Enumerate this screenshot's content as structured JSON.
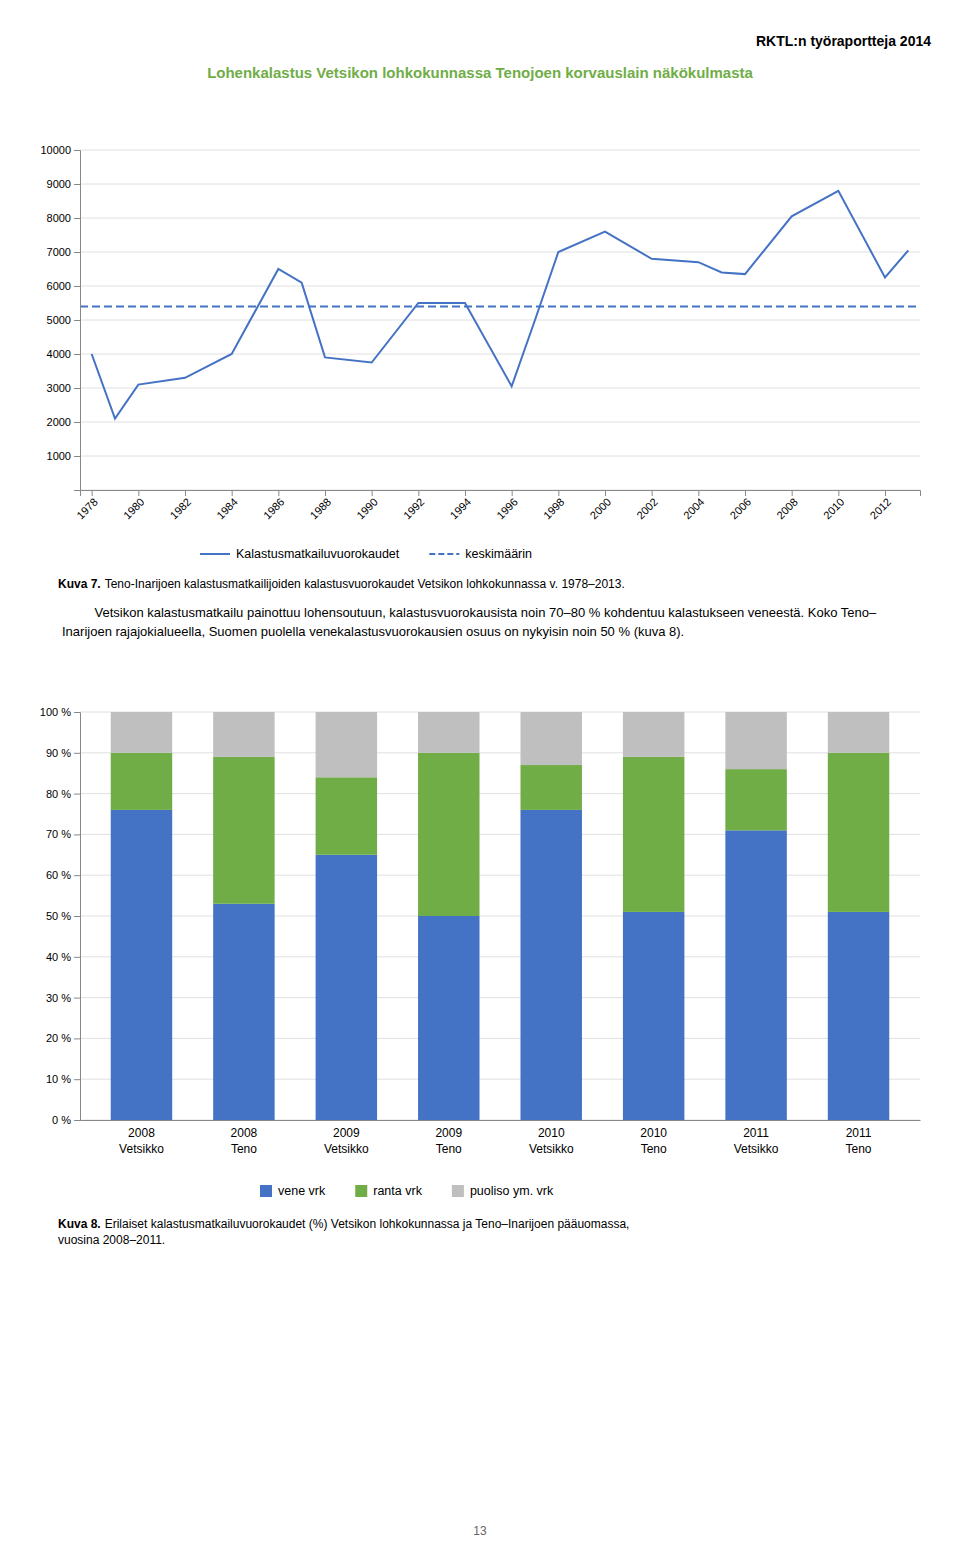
{
  "header": "RKTL:n työraportteja 2014",
  "title": "Lohenkalastus Vetsikon lohkokunnassa Tenojoen korvauslain näkökulmasta",
  "body_text": "Vetsikon kalastusmatkailu painottuu lohensoutuun, kalastusvuorokausista noin 70–80 % kohdentuu kalastukseen veneestä. Koko Teno–Inarijoen rajajokialueella, Suomen puolella venekalastusvuorokausien osuus on nykyisin noin 50 % (kuva 8).",
  "page_number": "13",
  "chart_data": [
    {
      "type": "line",
      "x": [
        1978,
        1979,
        1980,
        1982,
        1984,
        1986,
        1987,
        1988,
        1990,
        1992,
        1994,
        1996,
        1997,
        1998,
        2000,
        2002,
        2004,
        2005,
        2006,
        2008,
        2010,
        2012,
        2013
      ],
      "series": [
        {
          "name": "Kalastusmatkailuvuorokaudet",
          "color": "#4472c4",
          "values": [
            4000,
            2100,
            3100,
            3300,
            4000,
            6500,
            6100,
            3900,
            3750,
            5500,
            5500,
            3050,
            5000,
            7000,
            7600,
            6800,
            6700,
            6400,
            6350,
            8050,
            8800,
            6250,
            7050
          ]
        },
        {
          "name": "keskimäärin",
          "type": "hline",
          "color": "#4472c4",
          "line_style": "dashed",
          "value": 5400
        }
      ],
      "xlim": [
        1977.5,
        2013.5
      ],
      "xticks": [
        1978,
        1980,
        1982,
        1984,
        1986,
        1988,
        1990,
        1992,
        1994,
        1996,
        1998,
        2000,
        2002,
        2004,
        2006,
        2008,
        2010,
        2012
      ],
      "ylim": [
        0,
        10000
      ],
      "yticks": [
        {
          "value": 0,
          "label": null
        },
        1000,
        2000,
        3000,
        4000,
        5000,
        6000,
        7000,
        8000,
        9000,
        10000
      ],
      "grid": "y",
      "legend": "bottom",
      "caption": {
        "label": "Kuva 7.",
        "lines": [
          "Teno-Inarijoen kalastusmatkailijoiden kalastusvuorokaudet Vetsikon lohkokunnassa v. 1978–2013."
        ]
      }
    },
    {
      "type": "bar",
      "stacked": true,
      "categories": [
        [
          "2008",
          "Vetsikko"
        ],
        [
          "2008",
          "Teno"
        ],
        [
          "2009",
          "Vetsikko"
        ],
        [
          "2009",
          "Teno"
        ],
        [
          "2010",
          "Vetsikko"
        ],
        [
          "2010",
          "Teno"
        ],
        [
          "2011",
          "Vetsikko"
        ],
        [
          "2011",
          "Teno"
        ]
      ],
      "series": [
        {
          "name": "vene vrk",
          "color": "#4472c4",
          "values": [
            0.76,
            0.53,
            0.65,
            0.5,
            0.76,
            0.51,
            0.71,
            0.51
          ]
        },
        {
          "name": "ranta vrk",
          "color": "#70ad47",
          "values": [
            0.14,
            0.36,
            0.19,
            0.4,
            0.11,
            0.38,
            0.15,
            0.39
          ]
        },
        {
          "name": "puoliso ym. vrk",
          "color": "#bfbfbf",
          "values": [
            0.1,
            0.11,
            0.16,
            0.1,
            0.13,
            0.11,
            0.14,
            0.1
          ]
        }
      ],
      "ylim": [
        0,
        1.0
      ],
      "yticks": [
        {
          "value": 0,
          "label": "0 %"
        },
        {
          "value": 0.1,
          "label": "10 %"
        },
        {
          "value": 0.2,
          "label": "20 %"
        },
        {
          "value": 0.3,
          "label": "30 %"
        },
        {
          "value": 0.4,
          "label": "40 %"
        },
        {
          "value": 0.5,
          "label": "50 %"
        },
        {
          "value": 0.6,
          "label": "60 %"
        },
        {
          "value": 0.7,
          "label": "70 %"
        },
        {
          "value": 0.8,
          "label": "80 %"
        },
        {
          "value": 0.9,
          "label": "90 %"
        },
        {
          "value": 1.0,
          "label": "100 %"
        }
      ],
      "grid": "y",
      "legend": "bottom",
      "caption": {
        "label": "Kuva 8.",
        "lines": [
          "Erilaiset kalastusmatkailuvuorokaudet (%) Vetsikon lohkokunnassa ja Teno–Inarijoen pääuomassa,",
          "vuosina 2008–2011."
        ]
      }
    }
  ]
}
